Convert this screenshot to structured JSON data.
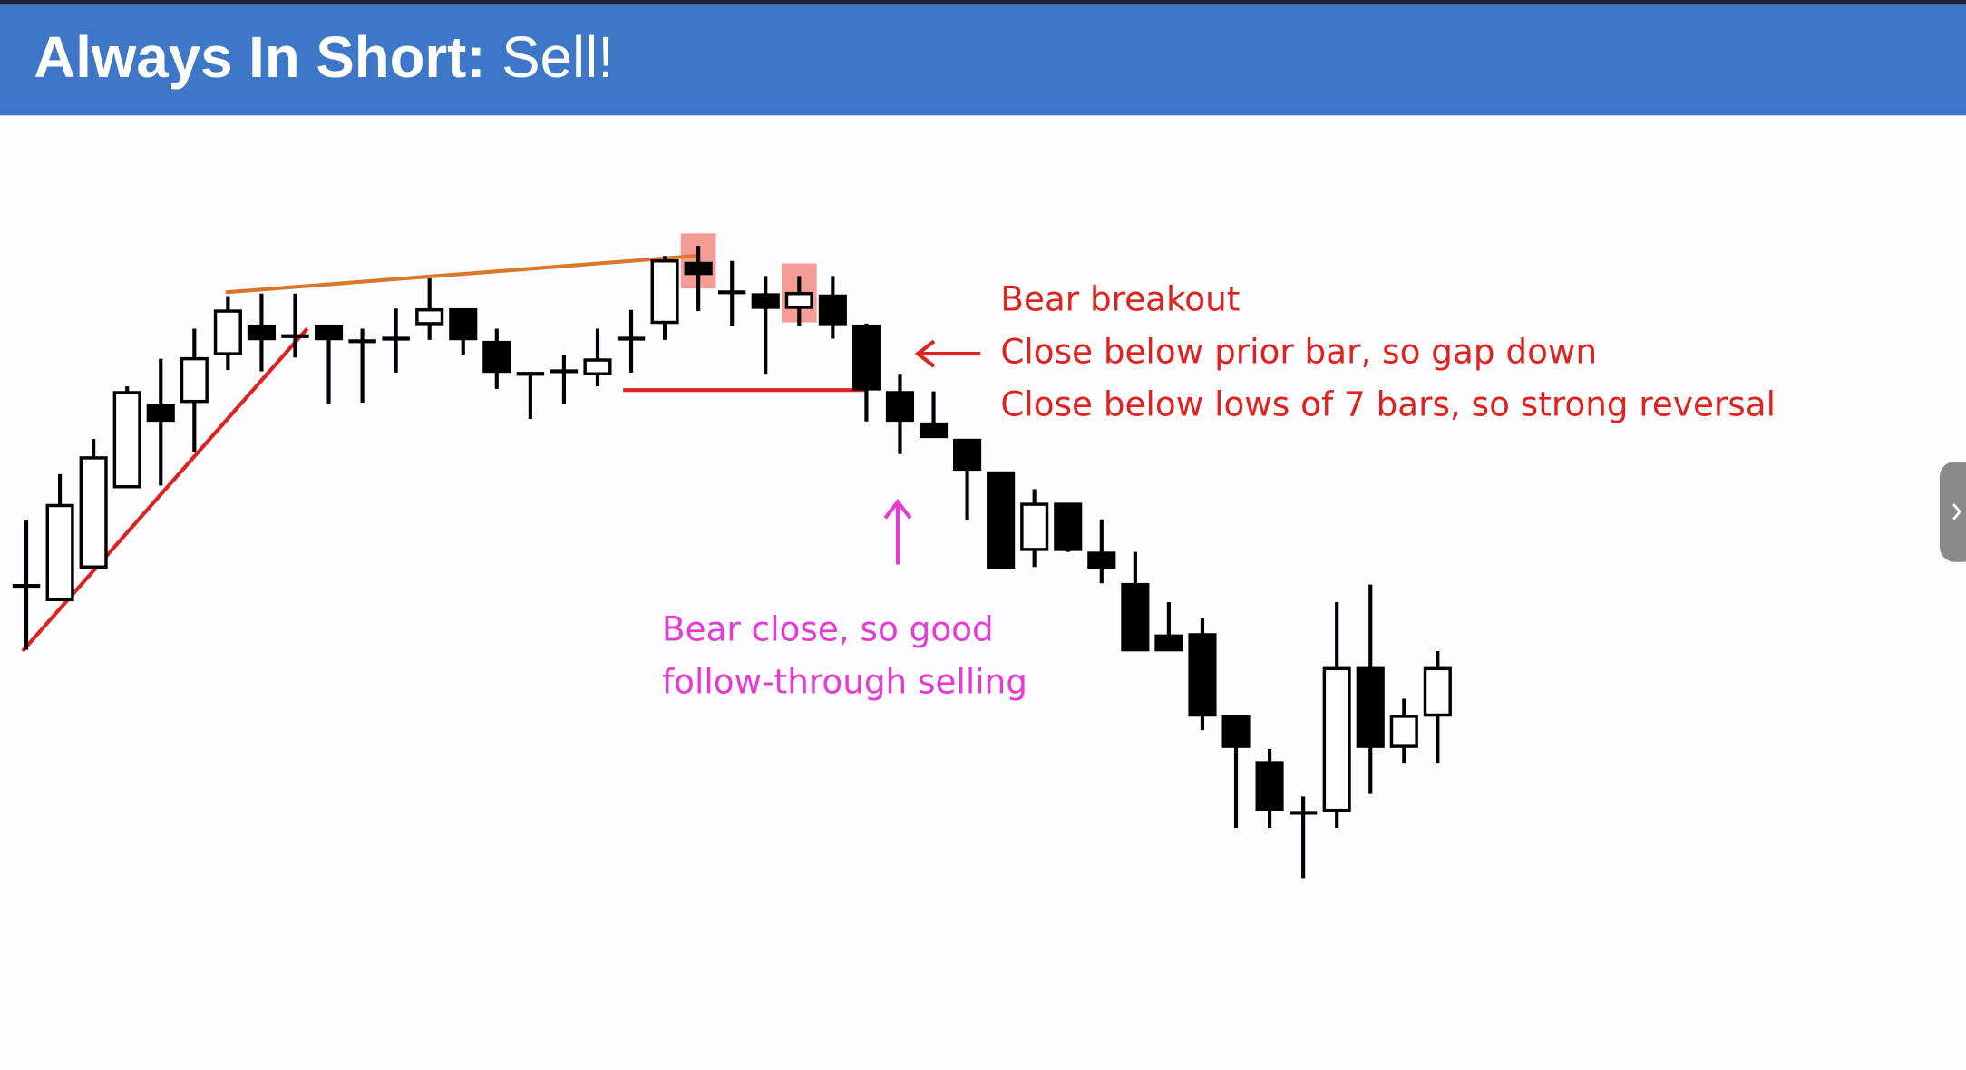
{
  "chart_data": {
    "type": "candlestick",
    "title_parts": [
      "Always In Short:",
      "Sell!"
    ],
    "annotations": {
      "breakout": {
        "color": "#e0221e",
        "lines": [
          "Bear breakout",
          "Close below prior bar, so gap down",
          "Close below lows of 7 bars, so strong reversal"
        ]
      },
      "follow": {
        "color": "#e53ad4",
        "lines": [
          "Bear close, so good",
          "follow-through selling"
        ]
      }
    },
    "highlight": [
      20,
      23
    ],
    "highlight_color": "#f28b82",
    "open": [
      386,
      375,
      401,
      465,
      530,
      533,
      571,
      593,
      585,
      593,
      581,
      583,
      595,
      606,
      580,
      555,
      557,
      555,
      583,
      596,
      643,
      620,
      618,
      608,
      617,
      593,
      540,
      515,
      502,
      476,
      415,
      451,
      412,
      387,
      346,
      347,
      282,
      245,
      205,
      207,
      320,
      258,
      283
    ],
    "high": [
      438,
      475,
      503,
      545,
      567,
      591,
      617,
      619,
      619,
      593,
      591,
      607,
      631,
      606,
      591,
      555,
      570,
      591,
      606,
      649,
      657,
      645,
      633,
      633,
      633,
      595,
      555,
      541,
      502,
      476,
      463,
      451,
      439,
      413,
      373,
      360,
      282,
      256,
      218,
      373,
      387,
      296,
      334
    ],
    "low": [
      335,
      375,
      401,
      465,
      466,
      493,
      558,
      557,
      568,
      531,
      532,
      556,
      582,
      570,
      543,
      519,
      531,
      545,
      556,
      582,
      605,
      593,
      555,
      593,
      583,
      517,
      491,
      505,
      438,
      401,
      401,
      413,
      388,
      335,
      335,
      271,
      193,
      193,
      153,
      193,
      220,
      245,
      245
    ],
    "close": [
      386,
      450,
      488,
      540,
      518,
      567,
      605,
      583,
      585,
      583,
      581,
      583,
      606,
      583,
      557,
      555,
      557,
      566,
      583,
      645,
      635,
      620,
      608,
      619,
      595,
      543,
      518,
      505,
      479,
      401,
      451,
      415,
      401,
      335,
      335,
      283,
      258,
      208,
      205,
      320,
      258,
      282,
      320
    ]
  }
}
